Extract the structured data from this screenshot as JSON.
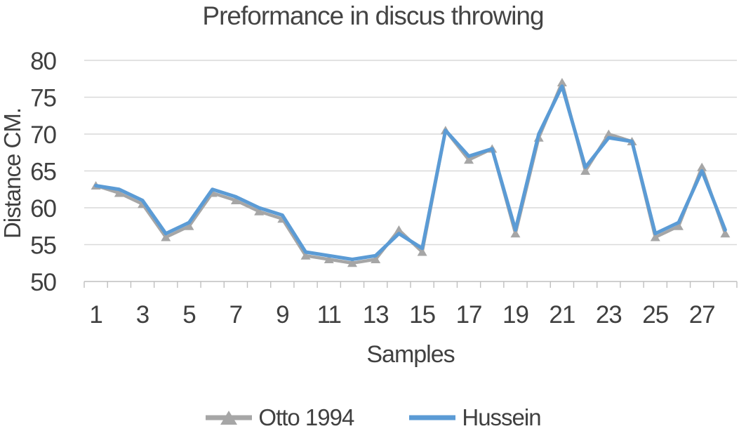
{
  "chart_data": {
    "type": "line",
    "title": "Preformance in discus throwing",
    "xlabel": "Samples",
    "ylabel": "Distance CM.",
    "x": [
      1,
      2,
      3,
      4,
      5,
      6,
      7,
      8,
      9,
      10,
      11,
      12,
      13,
      14,
      15,
      16,
      17,
      18,
      19,
      20,
      21,
      22,
      23,
      24,
      25,
      26,
      27,
      28
    ],
    "x_tick_labels": [
      "1",
      "3",
      "5",
      "7",
      "9",
      "11",
      "13",
      "15",
      "17",
      "19",
      "21",
      "23",
      "25",
      "27"
    ],
    "ylim": [
      50,
      80
    ],
    "yticks": [
      50,
      55,
      60,
      65,
      70,
      75,
      80
    ],
    "grid": true,
    "legend_position": "bottom",
    "series": [
      {
        "name": "Otto 1994",
        "color": "#A6A6A6",
        "marker": "triangle",
        "values": [
          63,
          62,
          60.5,
          56,
          57.5,
          62,
          61,
          59.5,
          58.5,
          53.5,
          53,
          52.5,
          53,
          57,
          54,
          70.5,
          66.5,
          68,
          56.5,
          69.5,
          77,
          65,
          70,
          69,
          56,
          57.5,
          65.5,
          56.5
        ]
      },
      {
        "name": "Hussein",
        "color": "#5B9BD5",
        "marker": "none",
        "values": [
          63,
          62.5,
          61,
          56.5,
          58,
          62.5,
          61.5,
          60,
          59,
          54,
          53.5,
          53,
          53.5,
          56.5,
          54.5,
          70.5,
          67,
          68,
          57,
          70,
          76.5,
          65.5,
          69.5,
          69,
          56.5,
          58,
          65,
          57
        ]
      }
    ],
    "axis_color": "#BFBFBF",
    "grid_color": "#D9D9D9",
    "text_color": "#404040"
  }
}
